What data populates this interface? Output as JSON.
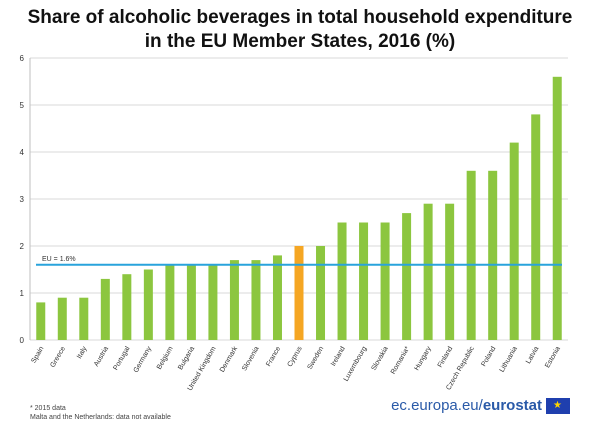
{
  "chart_data": {
    "type": "bar",
    "title_line1": "Share of alcoholic beverages in total household expenditure",
    "title_line2": "in the EU Member States, 2016 (%)",
    "categories": [
      "Spain",
      "Greece",
      "Italy",
      "Austria",
      "Portugal",
      "Germany",
      "Belgium",
      "Bulgaria",
      "United Kingdom",
      "Denmark",
      "Slovenia",
      "France",
      "Cyprus",
      "Sweden",
      "Ireland",
      "Luxembourg",
      "Slovakia",
      "Romania*",
      "Hungary",
      "Finland",
      "Czech Republic",
      "Poland",
      "Lithuania",
      "Latvia",
      "Estonia"
    ],
    "values": [
      0.8,
      0.9,
      0.9,
      1.3,
      1.4,
      1.5,
      1.6,
      1.6,
      1.6,
      1.7,
      1.7,
      1.8,
      2.0,
      2.0,
      2.5,
      2.5,
      2.5,
      2.7,
      2.9,
      2.9,
      3.6,
      3.6,
      4.2,
      4.8,
      5.6
    ],
    "highlight": "Cyprus",
    "ylim": [
      0,
      6
    ],
    "yticks": [
      0,
      1,
      2,
      3,
      4,
      5,
      6
    ],
    "reference_line": {
      "value": 1.6,
      "label": "EU = 1.6%"
    },
    "grid": true,
    "colors": {
      "bar": "#8cc63f",
      "highlight": "#f5a623",
      "reference": "#29a3dc",
      "grid": "#d9d9d9"
    }
  },
  "footnotes": [
    "* 2015 data",
    "Malta and the Netherlands: data not available"
  ],
  "brand": {
    "prefix": "ec.europa.eu/",
    "bold": "eurostat"
  }
}
